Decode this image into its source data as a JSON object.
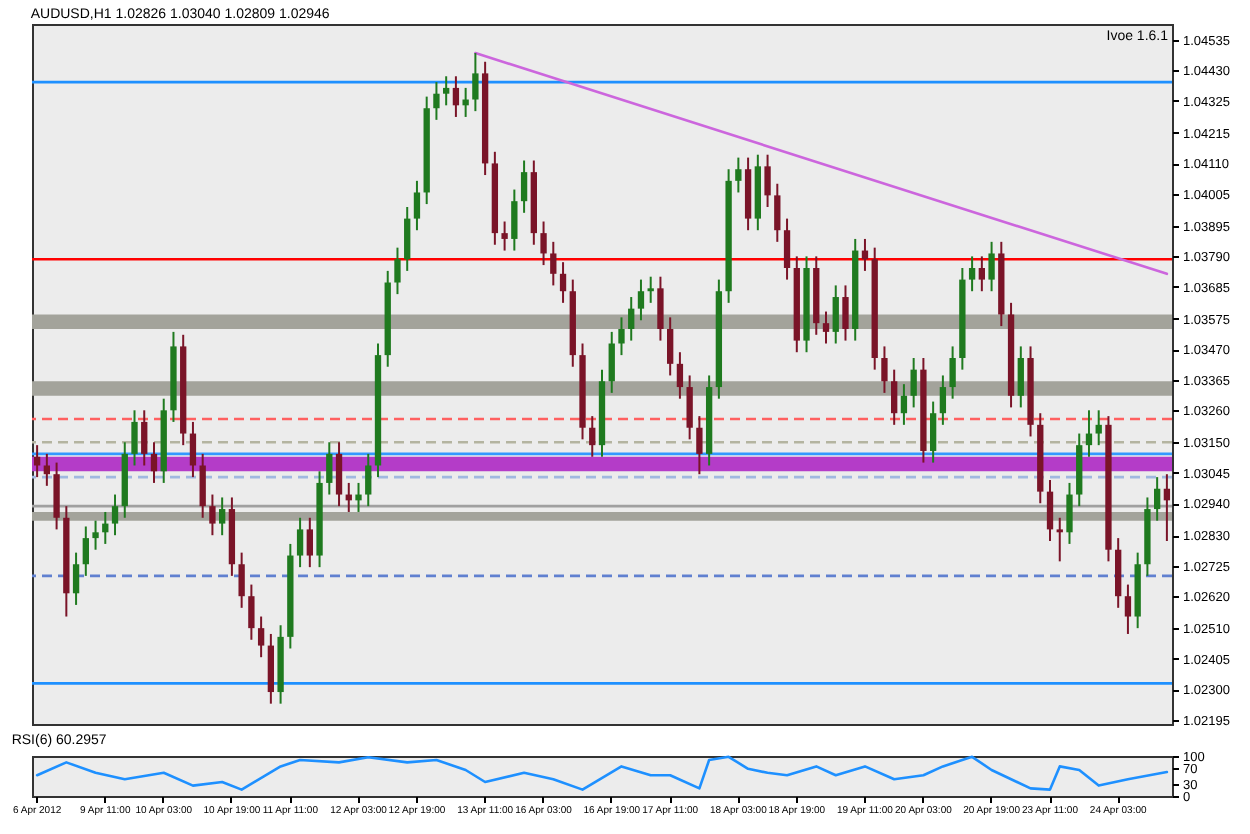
{
  "chart_data": [
    {
      "type": "candlestick",
      "title": "AUDUSD,H1 1.02826 1.03040 1.02809 1.02946",
      "annotations": [
        "Ivoe 1.6.1"
      ],
      "categories": [
        null,
        null,
        null,
        null,
        null,
        null,
        null,
        null,
        null,
        null,
        null,
        null,
        null,
        null,
        null,
        null,
        null,
        null,
        null,
        null,
        null,
        null,
        null,
        null,
        null,
        null,
        null,
        null,
        null,
        null,
        null,
        null,
        null,
        null,
        null,
        null,
        null,
        null,
        null,
        null,
        null,
        null,
        null,
        null,
        null,
        null,
        null,
        null,
        null,
        null,
        null,
        null,
        null,
        null,
        null,
        null,
        null,
        null,
        null,
        null,
        null,
        null,
        null,
        null,
        null,
        null,
        null,
        null,
        null,
        null,
        null,
        null,
        null,
        null,
        null,
        null,
        null,
        null,
        null,
        null,
        null,
        null,
        null,
        null,
        null,
        null,
        null,
        null,
        null,
        null,
        null,
        null,
        null,
        null,
        null,
        null,
        null,
        null,
        null,
        null,
        null,
        null,
        null,
        null,
        null,
        null,
        null,
        null,
        null,
        null,
        null,
        null,
        null,
        null,
        null,
        null,
        null
      ],
      "ohlc": [
        [
          1.031,
          1.0314,
          1.0303,
          1.0307
        ],
        [
          1.0307,
          1.0311,
          1.03,
          1.0304
        ],
        [
          1.0304,
          1.0308,
          1.0285,
          1.0289
        ],
        [
          1.0289,
          1.0293,
          1.0255,
          1.0263
        ],
        [
          1.0263,
          1.0277,
          1.0259,
          1.0273
        ],
        [
          1.0273,
          1.0286,
          1.0269,
          1.0282
        ],
        [
          1.0282,
          1.0288,
          1.0278,
          1.0284
        ],
        [
          1.0284,
          1.0291,
          1.028,
          1.0287
        ],
        [
          1.0287,
          1.0297,
          1.0283,
          1.0293
        ],
        [
          1.0293,
          1.0315,
          1.0289,
          1.0311
        ],
        [
          1.0311,
          1.0326,
          1.0307,
          1.0322
        ],
        [
          1.0322,
          1.0326,
          1.0307,
          1.0311
        ],
        [
          1.0311,
          1.0315,
          1.0301,
          1.0305
        ],
        [
          1.0305,
          1.033,
          1.0301,
          1.0326
        ],
        [
          1.0326,
          1.0353,
          1.0322,
          1.0348
        ],
        [
          1.0348,
          1.0352,
          1.0314,
          1.0318
        ],
        [
          1.0318,
          1.0322,
          1.0303,
          1.0307
        ],
        [
          1.0307,
          1.0311,
          1.0289,
          1.0293
        ],
        [
          1.0293,
          1.0297,
          1.0283,
          1.0287
        ],
        [
          1.0287,
          1.0296,
          1.0283,
          1.0292
        ],
        [
          1.0292,
          1.0296,
          1.0269,
          1.0273
        ],
        [
          1.0273,
          1.0277,
          1.0258,
          1.0262
        ],
        [
          1.0262,
          1.0266,
          1.0247,
          1.0251
        ],
        [
          1.0251,
          1.0255,
          1.0241,
          1.0245
        ],
        [
          1.0245,
          1.0249,
          1.0225,
          1.0229
        ],
        [
          1.0229,
          1.0252,
          1.0225,
          1.0248
        ],
        [
          1.0248,
          1.028,
          1.0244,
          1.0276
        ],
        [
          1.0276,
          1.0289,
          1.0272,
          1.0285
        ],
        [
          1.0285,
          1.0289,
          1.0272,
          1.0276
        ],
        [
          1.0276,
          1.0305,
          1.0272,
          1.0301
        ],
        [
          1.0301,
          1.0315,
          1.0297,
          1.0311
        ],
        [
          1.0311,
          1.0315,
          1.0293,
          1.0297
        ],
        [
          1.0297,
          1.0301,
          1.0291,
          1.0295
        ],
        [
          1.0295,
          1.0301,
          1.0291,
          1.0297
        ],
        [
          1.0297,
          1.0311,
          1.0293,
          1.0307
        ],
        [
          1.0307,
          1.0349,
          1.0303,
          1.0345
        ],
        [
          1.0345,
          1.0374,
          1.0341,
          1.037
        ],
        [
          1.037,
          1.0382,
          1.0366,
          1.0378
        ],
        [
          1.0378,
          1.0396,
          1.0374,
          1.0392
        ],
        [
          1.0392,
          1.0405,
          1.0388,
          1.0401
        ],
        [
          1.0401,
          1.0434,
          1.0397,
          1.043
        ],
        [
          1.043,
          1.0439,
          1.0426,
          1.0435
        ],
        [
          1.0435,
          1.0441,
          1.0431,
          1.0437
        ],
        [
          1.0437,
          1.0441,
          1.0427,
          1.0431
        ],
        [
          1.0431,
          1.0437,
          1.0427,
          1.0433
        ],
        [
          1.0433,
          1.0449,
          1.0429,
          1.0442
        ],
        [
          1.0442,
          1.0446,
          1.0407,
          1.0411
        ],
        [
          1.0411,
          1.0415,
          1.0383,
          1.0387
        ],
        [
          1.0387,
          1.0391,
          1.0381,
          1.0385
        ],
        [
          1.0385,
          1.0402,
          1.0381,
          1.0398
        ],
        [
          1.0398,
          1.0412,
          1.0394,
          1.0408
        ],
        [
          1.0408,
          1.0412,
          1.0383,
          1.0387
        ],
        [
          1.0387,
          1.0391,
          1.0376,
          1.038
        ],
        [
          1.038,
          1.0384,
          1.0369,
          1.0373
        ],
        [
          1.0373,
          1.0377,
          1.0363,
          1.0367
        ],
        [
          1.0367,
          1.0371,
          1.0341,
          1.0345
        ],
        [
          1.0345,
          1.0349,
          1.0316,
          1.032
        ],
        [
          1.032,
          1.0324,
          1.031,
          1.0314
        ],
        [
          1.0314,
          1.034,
          1.031,
          1.0336
        ],
        [
          1.0336,
          1.0353,
          1.0332,
          1.0349
        ],
        [
          1.0349,
          1.0358,
          1.0345,
          1.0354
        ],
        [
          1.0354,
          1.0365,
          1.035,
          1.0361
        ],
        [
          1.0361,
          1.0371,
          1.0357,
          1.0367
        ],
        [
          1.0367,
          1.0372,
          1.0363,
          1.0368
        ],
        [
          1.0368,
          1.0372,
          1.035,
          1.0354
        ],
        [
          1.0354,
          1.0358,
          1.0338,
          1.0342
        ],
        [
          1.0342,
          1.0346,
          1.033,
          1.0334
        ],
        [
          1.0334,
          1.0338,
          1.0316,
          1.032
        ],
        [
          1.032,
          1.0324,
          1.0304,
          1.0311
        ],
        [
          1.0311,
          1.0338,
          1.0307,
          1.0334
        ],
        [
          1.0334,
          1.0371,
          1.033,
          1.0367
        ],
        [
          1.0367,
          1.0409,
          1.0363,
          1.0405
        ],
        [
          1.0405,
          1.0413,
          1.0401,
          1.0409
        ],
        [
          1.0409,
          1.0413,
          1.0388,
          1.0392
        ],
        [
          1.0392,
          1.0414,
          1.0388,
          1.041
        ],
        [
          1.041,
          1.0414,
          1.0396,
          1.04
        ],
        [
          1.04,
          1.0404,
          1.0384,
          1.0388
        ],
        [
          1.0388,
          1.0392,
          1.0371,
          1.0375
        ],
        [
          1.0375,
          1.0379,
          1.0346,
          1.035
        ],
        [
          1.035,
          1.0379,
          1.0346,
          1.0375
        ],
        [
          1.0375,
          1.0379,
          1.0352,
          1.0356
        ],
        [
          1.0356,
          1.036,
          1.0349,
          1.0353
        ],
        [
          1.0353,
          1.0369,
          1.0349,
          1.0365
        ],
        [
          1.0365,
          1.0369,
          1.035,
          1.0354
        ],
        [
          1.0354,
          1.0385,
          1.035,
          1.0381
        ],
        [
          1.0381,
          1.0385,
          1.0374,
          1.0378
        ],
        [
          1.0378,
          1.0382,
          1.034,
          1.0344
        ],
        [
          1.0344,
          1.0348,
          1.0332,
          1.0336
        ],
        [
          1.0336,
          1.034,
          1.0321,
          1.0325
        ],
        [
          1.0325,
          1.0335,
          1.0321,
          1.0331
        ],
        [
          1.0331,
          1.0344,
          1.0327,
          1.034
        ],
        [
          1.034,
          1.0344,
          1.0308,
          1.0312
        ],
        [
          1.0312,
          1.0329,
          1.0308,
          1.0325
        ],
        [
          1.0325,
          1.0338,
          1.0321,
          1.0334
        ],
        [
          1.0334,
          1.0348,
          1.033,
          1.0344
        ],
        [
          1.0344,
          1.0375,
          1.034,
          1.0371
        ],
        [
          1.0371,
          1.0379,
          1.0367,
          1.0375
        ],
        [
          1.0375,
          1.0379,
          1.0367,
          1.0371
        ],
        [
          1.0371,
          1.0384,
          1.0367,
          1.038
        ],
        [
          1.038,
          1.0384,
          1.0355,
          1.0359
        ],
        [
          1.0359,
          1.0363,
          1.0327,
          1.0331
        ],
        [
          1.0331,
          1.0348,
          1.0327,
          1.0344
        ],
        [
          1.0344,
          1.0348,
          1.0317,
          1.0321
        ],
        [
          1.0321,
          1.0325,
          1.0294,
          1.0298
        ],
        [
          1.0298,
          1.0302,
          1.0281,
          1.0285
        ],
        [
          1.0285,
          1.0289,
          1.0274,
          1.0284
        ],
        [
          1.0284,
          1.0301,
          1.028,
          1.0297
        ],
        [
          1.0297,
          1.0318,
          1.0293,
          1.0314
        ],
        [
          1.0314,
          1.0326,
          1.031,
          1.0318
        ],
        [
          1.0318,
          1.0326,
          1.0314,
          1.0321
        ],
        [
          1.0321,
          1.0324,
          1.0274,
          1.0278
        ],
        [
          1.0278,
          1.0282,
          1.0258,
          1.0262
        ],
        [
          1.0262,
          1.0266,
          1.0249,
          1.0255
        ],
        [
          1.0255,
          1.0277,
          1.0251,
          1.0273
        ],
        [
          1.0273,
          1.0296,
          1.0269,
          1.0292
        ],
        [
          1.0292,
          1.0303,
          1.0288,
          1.0299
        ],
        [
          1.0299,
          1.0304,
          1.0281,
          1.0295
        ]
      ],
      "series": [
        {
          "type": "line",
          "values": [
            null,
            null,
            null,
            null,
            null,
            null,
            null,
            null,
            null,
            null,
            null,
            null,
            null,
            null,
            null,
            null,
            null,
            null,
            null,
            null,
            null,
            null,
            null,
            null,
            null,
            null,
            null,
            null,
            null,
            null,
            null,
            null,
            null,
            null,
            null,
            null,
            null,
            null,
            null,
            null,
            null,
            null,
            null,
            null,
            null,
            1.0449,
            null,
            null,
            null,
            null,
            null,
            null,
            null,
            null,
            null,
            null,
            null,
            null,
            null,
            null,
            null,
            null,
            null,
            null,
            null,
            null,
            null,
            null,
            null,
            null,
            null,
            null,
            null,
            null,
            null,
            null,
            null,
            null,
            null,
            null,
            null,
            null,
            null,
            null,
            null,
            null,
            null,
            null,
            null,
            null,
            null,
            null,
            null,
            null,
            null,
            null,
            null,
            null,
            null,
            null,
            null,
            null,
            null,
            null,
            null,
            null,
            null,
            null,
            null,
            null,
            null,
            null,
            null,
            null,
            null,
            null,
            1.0373
          ],
          "color": "#cc66dd"
        }
      ],
      "ylim": [
        1.0218,
        1.0459
      ],
      "yticks": [
        1.02195,
        {
          "value": 1.023,
          "label": "1.02300"
        },
        1.02405,
        {
          "value": 1.0251,
          "label": "1.02510"
        },
        {
          "value": 1.0262,
          "label": "1.02620"
        },
        1.02725,
        {
          "value": 1.0283,
          "label": "1.02830"
        },
        {
          "value": 1.0294,
          "label": "1.02940"
        },
        1.03045,
        {
          "value": 1.0315,
          "label": "1.03150"
        },
        {
          "value": 1.0326,
          "label": "1.03260"
        },
        1.03365,
        {
          "value": 1.0347,
          "label": "1.03470"
        },
        1.03575,
        1.03685,
        {
          "value": 1.0379,
          "label": "1.03790"
        },
        1.03895,
        1.04005,
        {
          "value": 1.0411,
          "label": "1.04110"
        },
        1.04215,
        1.04325,
        {
          "value": 1.0443,
          "label": "1.04430"
        },
        1.04535
      ],
      "tick_labels": "y",
      "bands": [
        {
          "axis": "y",
          "from": 1.0354,
          "to": 1.0359,
          "color": "#a3a39b"
        },
        {
          "axis": "y",
          "from": 1.0331,
          "to": 1.0336,
          "color": "#a3a39b"
        },
        {
          "axis": "y",
          "from": 1.0305,
          "to": 1.031,
          "color": "#b43cc8"
        },
        {
          "axis": "y",
          "from": 1.0288,
          "to": 1.0291,
          "color": "#a3a39b"
        }
      ],
      "ref_lines": [
        {
          "axis": "y",
          "value": 1.0439,
          "color": "#1e90ff"
        },
        {
          "axis": "y",
          "value": 1.0378,
          "color": "#ff0000"
        },
        {
          "axis": "y",
          "value": 1.0323,
          "color": "#ff6060",
          "line_style": "dashed"
        },
        {
          "axis": "y",
          "value": 1.0315,
          "color": "#b4b4a0",
          "line_style": "dashed"
        },
        {
          "axis": "y",
          "value": 1.0311,
          "color": "#3399ff"
        },
        {
          "axis": "y",
          "value": 1.0303,
          "color": "#a0b8e0",
          "line_style": "dashed"
        },
        {
          "axis": "y",
          "value": 1.0293,
          "color": "#a0a0a0"
        },
        {
          "axis": "y",
          "value": 1.0269,
          "color": "#6080d0",
          "line_style": "dashed"
        },
        {
          "axis": "y",
          "value": 1.0232,
          "color": "#1e90ff"
        }
      ]
    },
    {
      "type": "line",
      "title": "RSI(6) 60.2957",
      "color": "#1e90ff",
      "categories": [
        "6 Apr 2012",
        null,
        null,
        null,
        null,
        null,
        null,
        "9 Apr 11:00",
        null,
        null,
        null,
        null,
        null,
        "10 Apr 03:00",
        null,
        null,
        null,
        null,
        null,
        null,
        "10 Apr 19:00",
        null,
        null,
        null,
        null,
        null,
        "11 Apr 11:00",
        null,
        null,
        null,
        null,
        null,
        null,
        "12 Apr 03:00",
        null,
        null,
        null,
        null,
        null,
        "12 Apr 19:00",
        null,
        null,
        null,
        null,
        null,
        null,
        "13 Apr 11:00",
        null,
        null,
        null,
        null,
        null,
        "16 Apr 03:00",
        null,
        null,
        null,
        null,
        null,
        null,
        "16 Apr 19:00",
        null,
        null,
        null,
        null,
        null,
        "17 Apr 11:00",
        null,
        null,
        null,
        null,
        null,
        null,
        "18 Apr 03:00",
        null,
        null,
        null,
        null,
        null,
        "18 Apr 19:00",
        null,
        null,
        null,
        null,
        null,
        null,
        "19 Apr 11:00",
        null,
        null,
        null,
        null,
        null,
        "20 Apr 03:00",
        null,
        null,
        null,
        null,
        null,
        null,
        "20 Apr 19:00",
        null,
        null,
        null,
        null,
        null,
        "23 Apr 11:00",
        null,
        null,
        null,
        null,
        null,
        null,
        "24 Apr 03:00",
        null,
        null,
        null,
        null,
        null
      ],
      "values": [
        52,
        null,
        null,
        84,
        null,
        null,
        58,
        null,
        null,
        42,
        null,
        null,
        null,
        58,
        null,
        null,
        26,
        null,
        null,
        35,
        null,
        16,
        null,
        null,
        null,
        74,
        null,
        90,
        null,
        null,
        null,
        84,
        null,
        null,
        97,
        null,
        null,
        null,
        84,
        null,
        null,
        90,
        null,
        null,
        65,
        null,
        35,
        null,
        null,
        null,
        58,
        null,
        null,
        42,
        null,
        null,
        16,
        null,
        null,
        null,
        74,
        null,
        null,
        52,
        null,
        52,
        null,
        null,
        19,
        90,
        null,
        98,
        null,
        68,
        null,
        58,
        null,
        52,
        null,
        null,
        74,
        null,
        52,
        null,
        null,
        74,
        null,
        null,
        42,
        null,
        null,
        52,
        null,
        74,
        null,
        null,
        98,
        null,
        65,
        null,
        null,
        null,
        19,
        null,
        16,
        74,
        null,
        65,
        null,
        26,
        null,
        null,
        42,
        null,
        null,
        null,
        60
      ],
      "ylim": [
        0,
        100
      ],
      "yticks": [
        0,
        30,
        70,
        100
      ]
    }
  ]
}
